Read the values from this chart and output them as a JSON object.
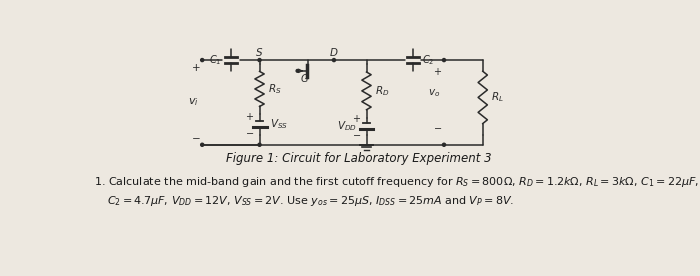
{
  "background_color": "#ede8e0",
  "figure_caption": "Figure 1: Circuit for Laboratory Experiment 3",
  "problem_line1": "1. Calculate the mid-band gain and the first cutoff frequency for $R_S = 800\\Omega$, $R_D = 1.2k\\Omega$, $R_L = 3k\\Omega$, $C_1 = 22\\mu F$,",
  "problem_line2": "$C_2 = 4.7\\mu F$, $V_{DD} = 12V$, $V_{SS} = 2V$. Use $y_{os} = 25\\mu S$, $I_{DSS} = 25mA$ and $V_P = 8V$.",
  "caption_fontsize": 8.5,
  "text_fontsize": 8.0,
  "line_color": "#2a2a2a",
  "lw": 1.1
}
